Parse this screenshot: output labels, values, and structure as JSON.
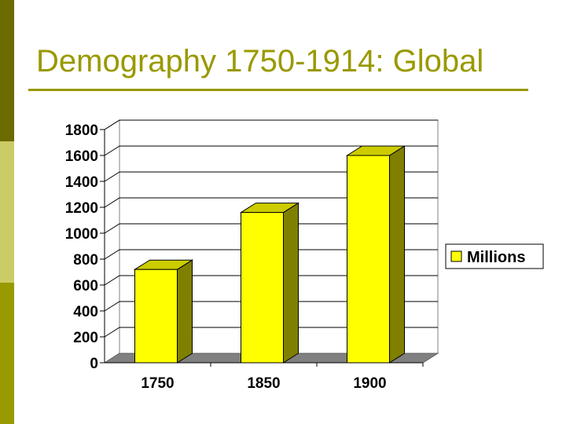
{
  "slide": {
    "title": "Demography 1750-1914: Global"
  },
  "colors": {
    "accent": "#999900",
    "bar_front": "#ffff00",
    "bar_top": "#cccc00",
    "bar_side": "#808000",
    "floor": "#808080"
  },
  "chart_data": {
    "type": "bar",
    "categories": [
      "1750",
      "1850",
      "1900"
    ],
    "series": [
      {
        "name": "Millions",
        "values": [
          720,
          1160,
          1600
        ]
      }
    ],
    "ylim": [
      0,
      1800
    ],
    "yticks": [
      0,
      200,
      400,
      600,
      800,
      1000,
      1200,
      1400,
      1600,
      1800
    ],
    "grid": true,
    "legend_position": "right",
    "style": "3d"
  }
}
